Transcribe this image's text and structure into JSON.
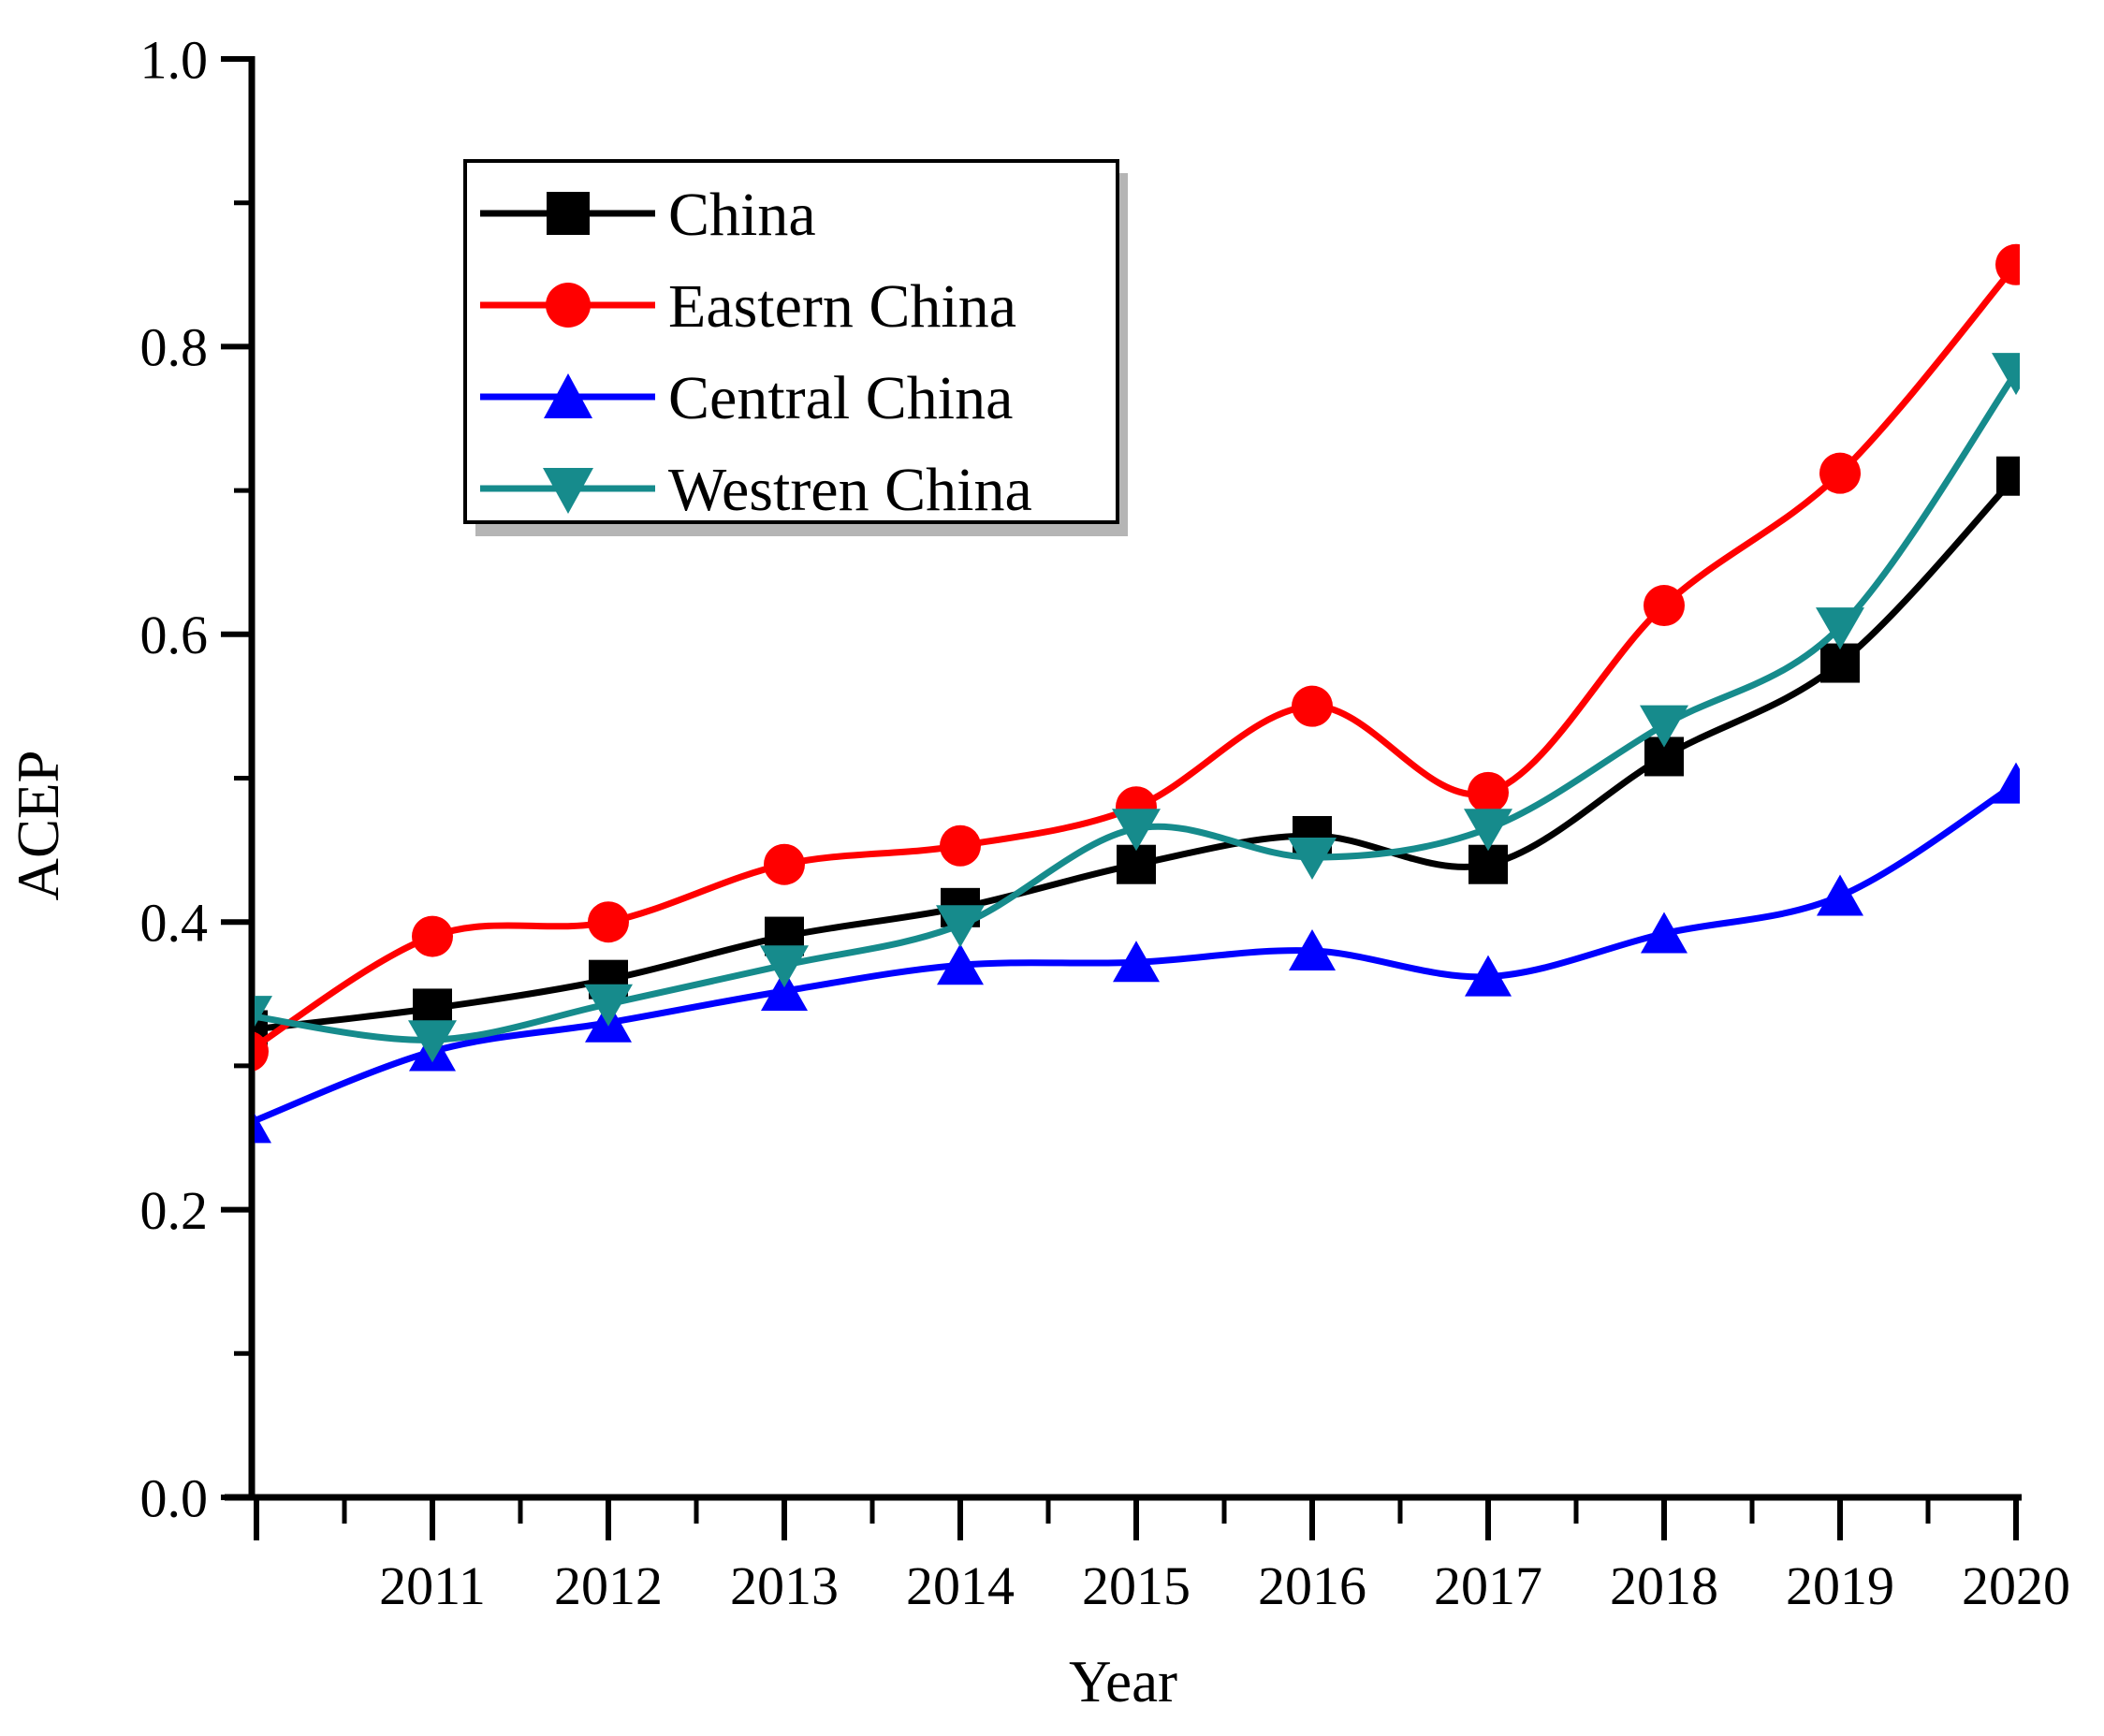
{
  "chart_data": {
    "type": "line",
    "title": "",
    "xlabel": "Year",
    "ylabel": "ACEP",
    "x": [
      2011,
      2012,
      2013,
      2014,
      2015,
      2016,
      2017,
      2018,
      2019,
      2020
    ],
    "x_tick_labels": [
      "2011",
      "2012",
      "2013",
      "2014",
      "2015",
      "2016",
      "2017",
      "2018",
      "2019",
      "2020"
    ],
    "y_major_ticks": [
      0.0,
      0.2,
      0.4,
      0.6,
      0.8,
      1.0
    ],
    "y_tick_labels": [
      "0.0",
      "0.2",
      "0.4",
      "0.6",
      "0.8",
      "1.0"
    ],
    "y_minor_ticks": [
      0.1,
      0.3,
      0.5,
      0.7,
      0.9
    ],
    "x_minor_ticks": [
      2010.5,
      2011.5,
      2012.5,
      2013.5,
      2014.5,
      2015.5,
      2016.5,
      2017.5,
      2018.5,
      2019.5
    ],
    "x_unlabeled_major_ticks": [
      2010
    ],
    "ylim": [
      0.0,
      1.0
    ],
    "grid": false,
    "legend_position": "upper-left-inside",
    "series": [
      {
        "name": "China",
        "color": "#000000",
        "marker": "square",
        "values": [
          0.34,
          0.36,
          0.39,
          0.41,
          0.44,
          0.46,
          0.44,
          0.515,
          0.58,
          0.71
        ],
        "clipped_2010_value": 0.325
      },
      {
        "name": "Eastern China",
        "color": "#FF0000",
        "marker": "circle",
        "values": [
          0.39,
          0.4,
          0.44,
          0.453,
          0.48,
          0.55,
          0.49,
          0.62,
          0.712,
          0.857
        ],
        "clipped_2010_value": 0.31
      },
      {
        "name": "Central China",
        "color": "#0000FF",
        "marker": "triangle-up",
        "values": [
          0.31,
          0.33,
          0.352,
          0.37,
          0.372,
          0.38,
          0.362,
          0.392,
          0.418,
          0.496
        ],
        "clipped_2010_value": 0.26
      },
      {
        "name": "Westren China",
        "color": "#168B8C",
        "marker": "triangle-down",
        "values": [
          0.318,
          0.343,
          0.37,
          0.398,
          0.465,
          0.445,
          0.465,
          0.537,
          0.605,
          0.782
        ],
        "clipped_2010_value": 0.335
      }
    ]
  }
}
